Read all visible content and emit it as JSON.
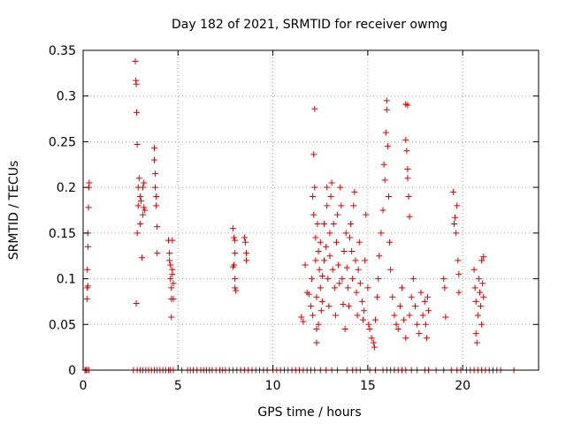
{
  "chart_data": {
    "type": "scatter",
    "title": "Day 182 of 2021, SRMTID for receiver owmg",
    "xlabel": "GPS time / hours",
    "ylabel": "SRMTID / TECUs",
    "xlim": [
      0,
      24
    ],
    "ylim": [
      0,
      0.35
    ],
    "x_ticks": [
      0,
      5,
      10,
      15,
      20
    ],
    "y_ticks": [
      0,
      0.05,
      0.1,
      0.15,
      0.2,
      0.25,
      0.3,
      0.35
    ],
    "x_tick_labels": [
      "0",
      "5",
      "10",
      "15",
      "20"
    ],
    "y_tick_labels": [
      "0",
      "0.05",
      "0.1",
      "0.15",
      "0.2",
      "0.25",
      "0.3",
      "0.35"
    ],
    "grid": true,
    "marker": "+",
    "marker_color": "#e00000",
    "series": [
      {
        "name": "SRMTID",
        "points": [
          [
            0.1,
            0.0
          ],
          [
            0.15,
            0.0
          ],
          [
            0.2,
            0.078
          ],
          [
            0.22,
            0.09
          ],
          [
            0.22,
            0.11
          ],
          [
            0.25,
            0.135
          ],
          [
            0.25,
            0.15
          ],
          [
            0.28,
            0.178
          ],
          [
            0.3,
            0.2
          ],
          [
            0.32,
            0.205
          ],
          [
            0.25,
            0.092
          ],
          [
            2.75,
            0.338
          ],
          [
            2.78,
            0.317
          ],
          [
            2.8,
            0.313
          ],
          [
            2.82,
            0.282
          ],
          [
            2.85,
            0.247
          ],
          [
            2.8,
            0.073
          ],
          [
            2.85,
            0.15
          ],
          [
            2.9,
            0.18
          ],
          [
            2.9,
            0.2
          ],
          [
            2.95,
            0.21
          ],
          [
            3.0,
            0.19
          ],
          [
            3.0,
            0.16
          ],
          [
            3.05,
            0.185
          ],
          [
            3.1,
            0.123
          ],
          [
            3.15,
            0.17
          ],
          [
            3.15,
            0.2
          ],
          [
            3.2,
            0.178
          ],
          [
            3.2,
            0.205
          ],
          [
            3.25,
            0.175
          ],
          [
            3.75,
            0.243
          ],
          [
            3.75,
            0.23
          ],
          [
            3.8,
            0.215
          ],
          [
            3.8,
            0.2
          ],
          [
            3.85,
            0.19
          ],
          [
            3.85,
            0.18
          ],
          [
            3.9,
            0.157
          ],
          [
            3.9,
            0.128
          ],
          [
            4.5,
            0.142
          ],
          [
            4.55,
            0.128
          ],
          [
            4.55,
            0.12
          ],
          [
            4.6,
            0.115
          ],
          [
            4.6,
            0.1
          ],
          [
            4.65,
            0.09
          ],
          [
            4.65,
            0.078
          ],
          [
            4.65,
            0.058
          ],
          [
            4.7,
            0.142
          ],
          [
            4.7,
            0.11
          ],
          [
            4.7,
            0.105
          ],
          [
            4.75,
            0.095
          ],
          [
            4.75,
            0.078
          ],
          [
            7.9,
            0.155
          ],
          [
            7.95,
            0.145
          ],
          [
            8.0,
            0.142
          ],
          [
            8.0,
            0.128
          ],
          [
            7.9,
            0.113
          ],
          [
            7.95,
            0.115
          ],
          [
            8.0,
            0.1
          ],
          [
            8.0,
            0.09
          ],
          [
            8.05,
            0.087
          ],
          [
            8.5,
            0.145
          ],
          [
            8.55,
            0.14
          ],
          [
            8.6,
            0.128
          ],
          [
            8.6,
            0.12
          ],
          [
            11.5,
            0.058
          ],
          [
            11.6,
            0.053
          ],
          [
            11.7,
            0.115
          ],
          [
            11.8,
            0.085
          ],
          [
            11.9,
            0.083
          ],
          [
            12.0,
            0.07
          ],
          [
            12.05,
            0.1
          ],
          [
            12.1,
            0.06
          ],
          [
            12.1,
            0.19
          ],
          [
            12.15,
            0.17
          ],
          [
            12.2,
            0.2
          ],
          [
            12.15,
            0.236
          ],
          [
            12.2,
            0.286
          ],
          [
            12.25,
            0.145
          ],
          [
            12.25,
            0.12
          ],
          [
            12.3,
            0.08
          ],
          [
            12.3,
            0.045
          ],
          [
            12.3,
            0.03
          ],
          [
            12.35,
            0.16
          ],
          [
            12.4,
            0.13
          ],
          [
            12.4,
            0.05
          ],
          [
            12.45,
            0.11
          ],
          [
            12.5,
            0.09
          ],
          [
            12.5,
            0.14
          ],
          [
            12.55,
            0.065
          ],
          [
            12.6,
            0.103
          ],
          [
            12.6,
            0.075
          ],
          [
            12.7,
            0.12
          ],
          [
            12.7,
            0.16
          ],
          [
            12.8,
            0.135
          ],
          [
            12.85,
            0.2
          ],
          [
            12.85,
            0.18
          ],
          [
            12.9,
            0.1
          ],
          [
            12.95,
            0.07
          ],
          [
            13.0,
            0.15
          ],
          [
            13.0,
            0.125
          ],
          [
            13.05,
            0.19
          ],
          [
            13.1,
            0.205
          ],
          [
            13.15,
            0.11
          ],
          [
            13.2,
            0.16
          ],
          [
            13.25,
            0.09
          ],
          [
            13.3,
            0.06
          ],
          [
            13.35,
            0.14
          ],
          [
            13.4,
            0.17
          ],
          [
            13.45,
            0.115
          ],
          [
            13.5,
            0.095
          ],
          [
            13.55,
            0.2
          ],
          [
            13.6,
            0.18
          ],
          [
            13.65,
            0.1
          ],
          [
            13.7,
            0.072
          ],
          [
            13.75,
            0.13
          ],
          [
            13.8,
            0.045
          ],
          [
            13.85,
            0.15
          ],
          [
            13.9,
            0.112
          ],
          [
            13.95,
            0.09
          ],
          [
            14.0,
            0.07
          ],
          [
            14.05,
            0.145
          ],
          [
            14.1,
            0.16
          ],
          [
            14.15,
            0.13
          ],
          [
            14.2,
            0.1
          ],
          [
            14.25,
            0.18
          ],
          [
            14.3,
            0.195
          ],
          [
            14.35,
            0.12
          ],
          [
            14.4,
            0.085
          ],
          [
            14.45,
            0.06
          ],
          [
            14.5,
            0.11
          ],
          [
            14.55,
            0.14
          ],
          [
            14.6,
            0.095
          ],
          [
            14.7,
            0.075
          ],
          [
            14.75,
            0.055
          ],
          [
            14.8,
            0.065
          ],
          [
            14.85,
            0.12
          ],
          [
            14.9,
            0.17
          ],
          [
            15.0,
            0.09
          ],
          [
            15.05,
            0.05
          ],
          [
            15.1,
            0.045
          ],
          [
            15.2,
            0.035
          ],
          [
            15.3,
            0.03
          ],
          [
            15.35,
            0.025
          ],
          [
            15.4,
            0.055
          ],
          [
            15.5,
            0.08
          ],
          [
            15.55,
            0.1
          ],
          [
            15.6,
            0.125
          ],
          [
            15.7,
            0.15
          ],
          [
            15.8,
            0.175
          ],
          [
            15.85,
            0.225
          ],
          [
            15.9,
            0.208
          ],
          [
            15.95,
            0.26
          ],
          [
            16.0,
            0.295
          ],
          [
            16.0,
            0.285
          ],
          [
            16.05,
            0.245
          ],
          [
            16.1,
            0.19
          ],
          [
            16.15,
            0.14
          ],
          [
            16.2,
            0.11
          ],
          [
            16.3,
            0.08
          ],
          [
            16.4,
            0.06
          ],
          [
            16.5,
            0.05
          ],
          [
            16.6,
            0.045
          ],
          [
            16.7,
            0.07
          ],
          [
            16.8,
            0.09
          ],
          [
            16.9,
            0.055
          ],
          [
            17.0,
            0.035
          ],
          [
            17.0,
            0.252
          ],
          [
            17.05,
            0.24
          ],
          [
            17.1,
            0.22
          ],
          [
            17.1,
            0.21
          ],
          [
            17.15,
            0.19
          ],
          [
            17.2,
            0.168
          ],
          [
            17.0,
            0.291
          ],
          [
            17.1,
            0.29
          ],
          [
            17.2,
            0.06
          ],
          [
            17.3,
            0.08
          ],
          [
            17.4,
            0.1
          ],
          [
            17.5,
            0.07
          ],
          [
            17.6,
            0.05
          ],
          [
            17.7,
            0.04
          ],
          [
            17.8,
            0.085
          ],
          [
            17.9,
            0.06
          ],
          [
            18.0,
            0.075
          ],
          [
            18.05,
            0.05
          ],
          [
            18.1,
            0.035
          ],
          [
            18.15,
            0.08
          ],
          [
            18.2,
            0.065
          ],
          [
            19.0,
            0.1
          ],
          [
            19.05,
            0.09
          ],
          [
            19.1,
            0.058
          ],
          [
            19.5,
            0.195
          ],
          [
            19.55,
            0.16
          ],
          [
            19.6,
            0.167
          ],
          [
            19.65,
            0.15
          ],
          [
            19.7,
            0.18
          ],
          [
            19.75,
            0.12
          ],
          [
            19.8,
            0.105
          ],
          [
            19.8,
            0.085
          ],
          [
            20.6,
            0.11
          ],
          [
            20.65,
            0.09
          ],
          [
            20.7,
            0.075
          ],
          [
            20.7,
            0.04
          ],
          [
            20.75,
            0.03
          ],
          [
            20.8,
            0.06
          ],
          [
            20.85,
            0.1
          ],
          [
            20.9,
            0.085
          ],
          [
            20.95,
            0.07
          ],
          [
            21.0,
            0.12
          ],
          [
            21.0,
            0.05
          ],
          [
            21.05,
            0.095
          ],
          [
            21.1,
            0.124
          ],
          [
            21.1,
            0.08
          ]
        ]
      }
    ],
    "zero_points_x": [
      0.1,
      0.2,
      0.3,
      2.65,
      2.85,
      3.0,
      3.15,
      3.3,
      3.45,
      3.6,
      3.75,
      3.9,
      4.05,
      4.2,
      4.35,
      4.5,
      4.6,
      4.75,
      5.2,
      5.5,
      5.65,
      5.8,
      6.0,
      6.2,
      6.35,
      6.5,
      6.65,
      6.8,
      7.0,
      7.2,
      7.35,
      7.5,
      7.7,
      7.9,
      8.1,
      8.3,
      8.5,
      8.7,
      8.9,
      9.1,
      9.3,
      9.5,
      9.7,
      10.0,
      10.2,
      10.4,
      10.6,
      10.8,
      11.0,
      11.2,
      11.4,
      11.6,
      11.8,
      12.0,
      12.2,
      12.5,
      12.8,
      13.1,
      13.4,
      13.9,
      14.2,
      14.4,
      14.6,
      15.1,
      15.4,
      15.8,
      16.0,
      16.2,
      16.4,
      16.6,
      16.8,
      17.0,
      17.3,
      17.6,
      18.0,
      18.2,
      18.6,
      19.0,
      19.4,
      19.7,
      19.9,
      20.2,
      20.4,
      20.6,
      20.8,
      21.0,
      21.2,
      21.4,
      21.6,
      21.8,
      22.0,
      22.7
    ]
  }
}
